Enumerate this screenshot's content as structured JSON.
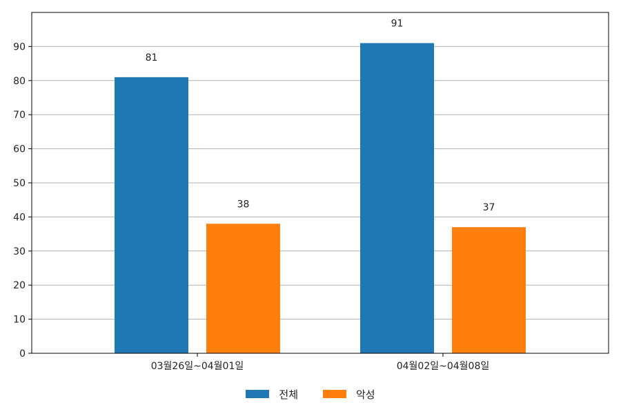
{
  "chart_data": {
    "type": "bar",
    "categories": [
      "03월26일~04월01일",
      "04월02일~04월08일"
    ],
    "series": [
      {
        "name": "전체",
        "values": [
          81,
          91
        ],
        "color": "#1f77b4"
      },
      {
        "name": "악성",
        "values": [
          38,
          37
        ],
        "color": "#ff7f0e"
      }
    ],
    "ylim": [
      0,
      100
    ],
    "yticks": [
      0,
      10,
      20,
      30,
      40,
      50,
      60,
      70,
      80,
      90
    ],
    "grid": "horizontal",
    "legend_position": "bottom-center",
    "xlabel": "",
    "ylabel": "",
    "title": ""
  }
}
